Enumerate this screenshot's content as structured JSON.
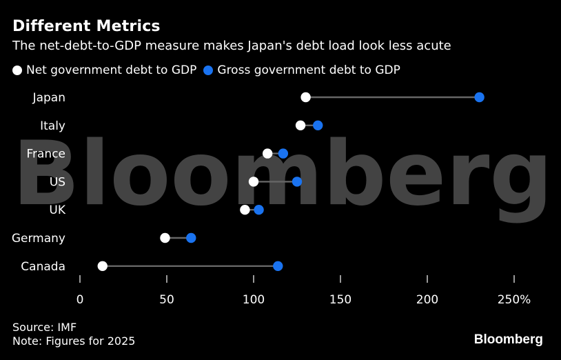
{
  "header": {
    "title": "Different Metrics",
    "subtitle": "The net-debt-to-GDP measure makes Japan's debt load look less acute"
  },
  "legend": {
    "net_label": "Net government debt to GDP",
    "gross_label": "Gross government debt to GDP"
  },
  "colors": {
    "background": "#000000",
    "net": "#ffffff",
    "gross": "#1a73f0",
    "connector": "#666666",
    "text": "#ffffff"
  },
  "footer": {
    "source": "Source: IMF",
    "note": "Note: Figures for 2025"
  },
  "brand": "Bloomberg",
  "watermark": "Bloomberg",
  "chart_data": {
    "type": "dot-range",
    "title": "Different Metrics",
    "subtitle": "The net-debt-to-GDP measure makes Japan's debt load look less acute",
    "xlabel": "",
    "ylabel": "",
    "xlim": [
      0,
      250
    ],
    "x_ticks": [
      0,
      50,
      100,
      150,
      200,
      250
    ],
    "x_tick_labels": [
      "0",
      "50",
      "100",
      "150",
      "200",
      "250%"
    ],
    "categories": [
      "Japan",
      "Italy",
      "France",
      "US",
      "UK",
      "Germany",
      "Canada"
    ],
    "series": [
      {
        "name": "Net government debt to GDP",
        "values": [
          130,
          127,
          108,
          100,
          95,
          49,
          13
        ]
      },
      {
        "name": "Gross government debt to GDP",
        "values": [
          230,
          137,
          117,
          125,
          103,
          64,
          114
        ]
      }
    ],
    "legend_position": "top-left",
    "grid": false
  }
}
